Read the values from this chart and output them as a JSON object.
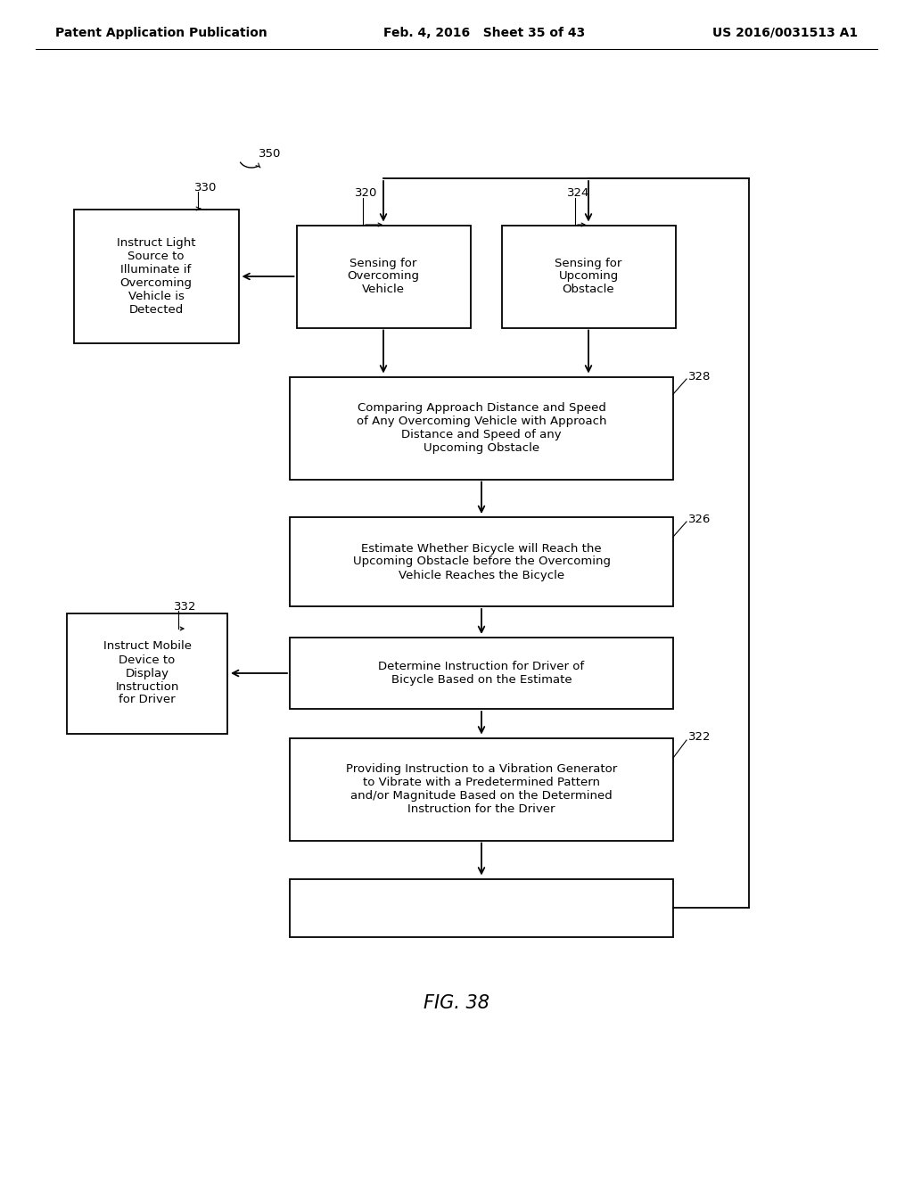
{
  "background_color": "#ffffff",
  "header_left": "Patent Application Publication",
  "header_mid": "Feb. 4, 2016   Sheet 35 of 43",
  "header_right": "US 2016/0031513 A1",
  "figure_label": "FIG. 38",
  "label_350": "350",
  "label_330": "330",
  "label_320": "320",
  "label_324": "324",
  "label_328": "328",
  "label_326": "326",
  "label_332": "332",
  "label_322": "322",
  "box_330_text": "Instruct Light\nSource to\nIlluminate if\nOvercoming\nVehicle is\nDetected",
  "box_320_text": "Sensing for\nOvercoming\nVehicle",
  "box_324_text": "Sensing for\nUpcoming\nObstacle",
  "box_328_text": "Comparing Approach Distance and Speed\nof Any Overcoming Vehicle with Approach\nDistance and Speed of any\nUpcoming Obstacle",
  "box_326_text": "Estimate Whether Bicycle will Reach the\nUpcoming Obstacle before the Overcoming\nVehicle Reaches the Bicycle",
  "box_determine_text": "Determine Instruction for Driver of\nBicycle Based on the Estimate",
  "box_332_text": "Instruct Mobile\nDevice to\nDisplay\nInstruction\nfor Driver",
  "box_322_text": "Providing Instruction to a Vibration Generator\nto Vibrate with a Predetermined Pattern\nand/or Magnitude Based on the Determined\nInstruction for the Driver",
  "box_color": "#ffffff",
  "box_edge_color": "#000000",
  "text_color": "#000000",
  "arrow_color": "#000000",
  "line_width": 1.3,
  "font_size_box": 9.5,
  "font_size_header": 10,
  "font_size_label": 9.5,
  "font_size_fig": 15
}
